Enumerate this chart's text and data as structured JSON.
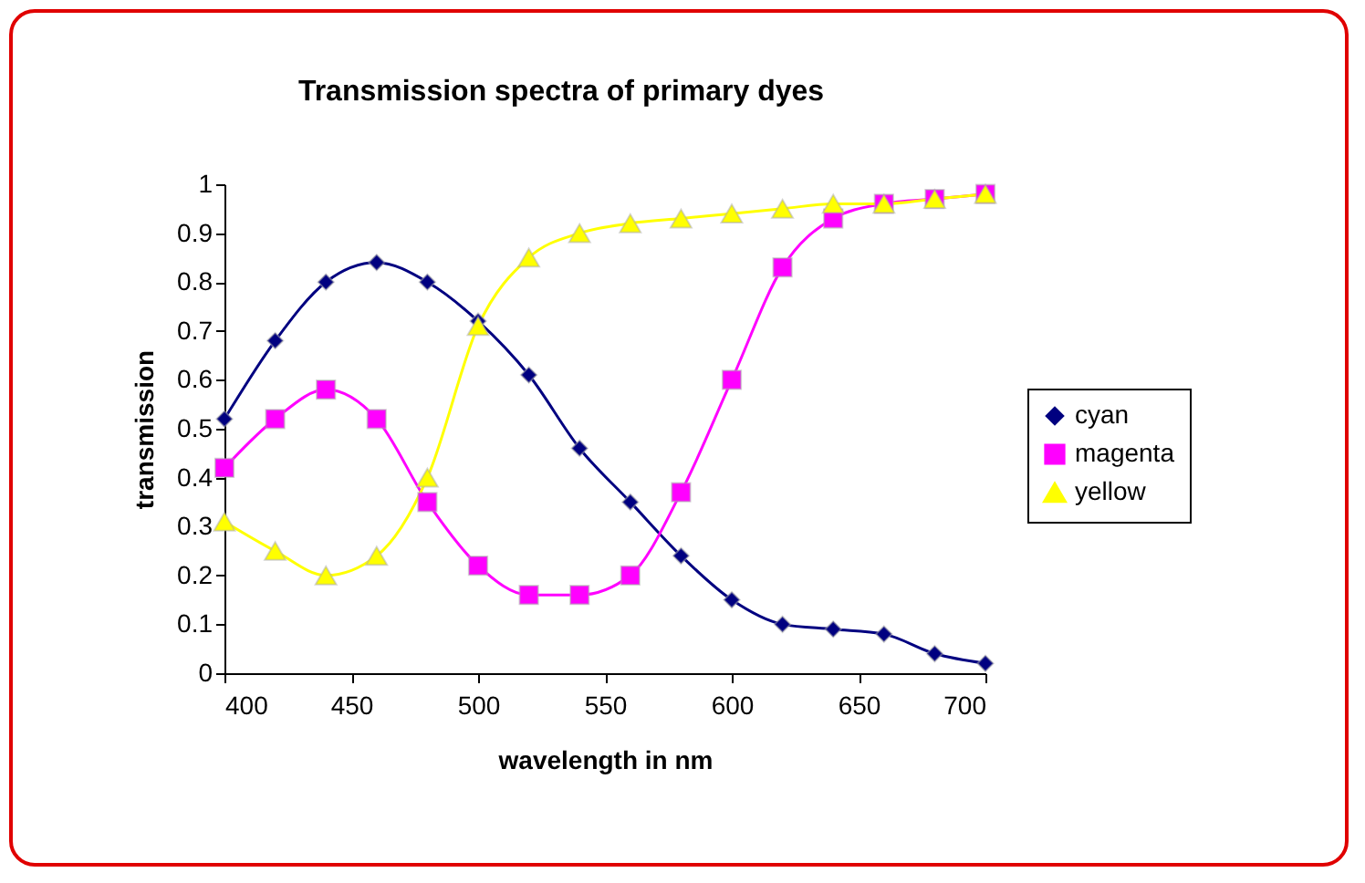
{
  "chart_data": {
    "type": "line",
    "title": "Transmission spectra of primary dyes",
    "xlabel": "wavelength in nm",
    "ylabel": "transmission",
    "x": [
      400,
      420,
      440,
      460,
      480,
      500,
      520,
      540,
      560,
      580,
      600,
      620,
      640,
      660,
      680,
      700
    ],
    "series": [
      {
        "name": "cyan",
        "color": "#000080",
        "marker": "diamond",
        "values": [
          0.52,
          0.68,
          0.8,
          0.84,
          0.8,
          0.72,
          0.61,
          0.46,
          0.35,
          0.24,
          0.15,
          0.1,
          0.09,
          0.08,
          0.04,
          0.02
        ]
      },
      {
        "name": "magenta",
        "color": "#ff00ff",
        "marker": "square",
        "values": [
          0.42,
          0.52,
          0.58,
          0.52,
          0.35,
          0.22,
          0.16,
          0.16,
          0.2,
          0.37,
          0.6,
          0.83,
          0.93,
          0.96,
          0.97,
          0.98
        ]
      },
      {
        "name": "yellow",
        "color": "#ffff00",
        "marker": "triangle",
        "values": [
          0.31,
          0.25,
          0.2,
          0.24,
          0.4,
          0.71,
          0.85,
          0.9,
          0.92,
          0.93,
          0.94,
          0.95,
          0.96,
          0.96,
          0.97,
          0.98
        ]
      }
    ],
    "xlim": [
      400,
      700
    ],
    "xticks": [
      400,
      450,
      500,
      550,
      600,
      650,
      700
    ],
    "ylim": [
      0,
      1
    ],
    "yticks": [
      0,
      0.1,
      0.2,
      0.3,
      0.4,
      0.5,
      0.6,
      0.7,
      0.8,
      0.9,
      1
    ],
    "grid": false,
    "legend": "right",
    "line_style": "solid"
  }
}
